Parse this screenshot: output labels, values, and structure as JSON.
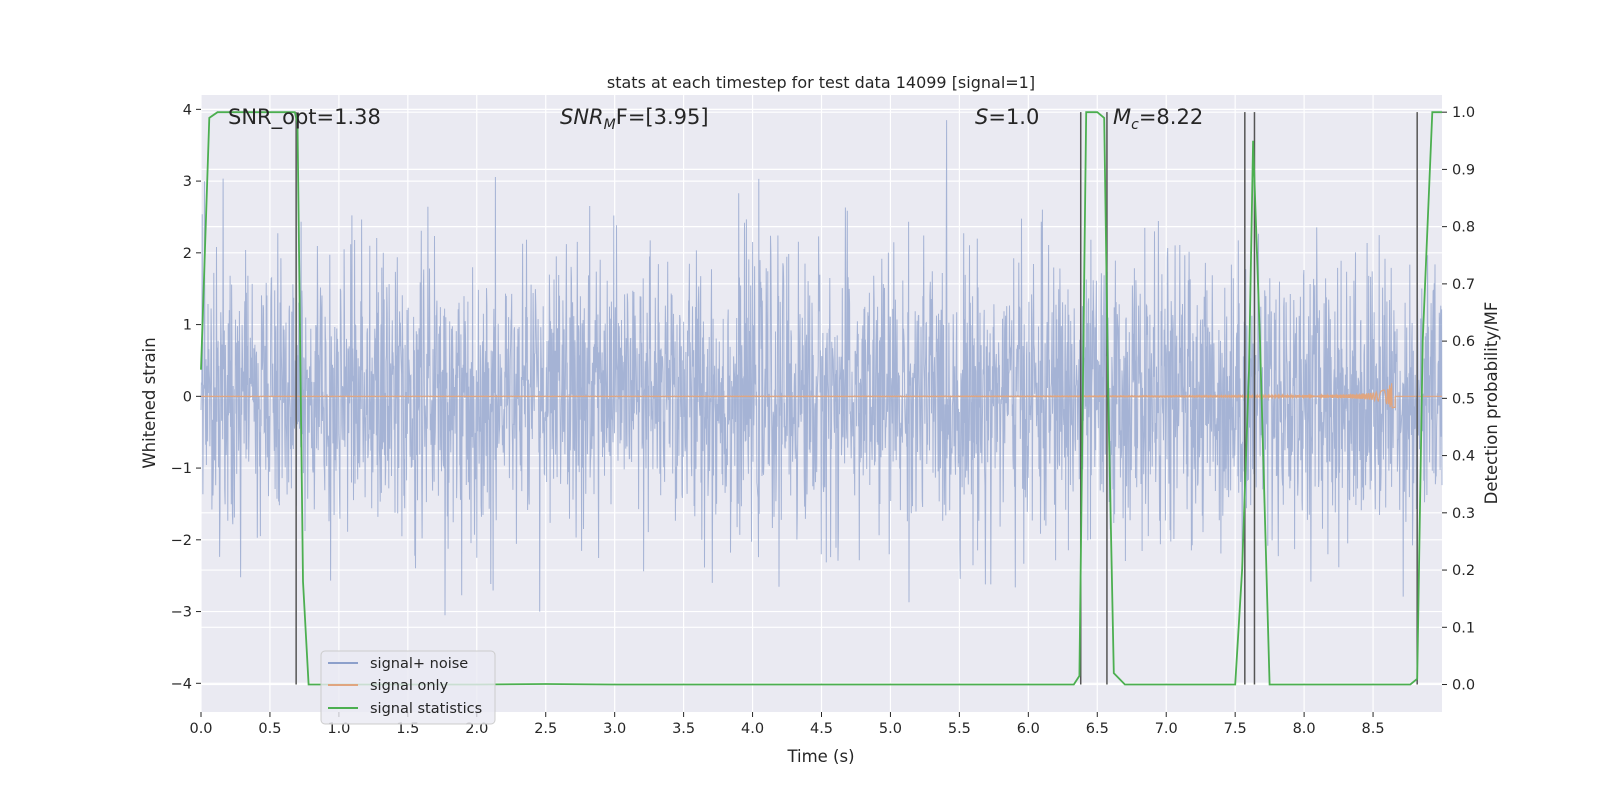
{
  "chart_data": {
    "type": "line",
    "title": "stats at each timestep for test data 14099 [signal=1]",
    "xlabel": "Time (s)",
    "ylabel": "Whitened strain",
    "y2label": "Detection probability/MF",
    "xlim": [
      0.0,
      9.0
    ],
    "ylim": [
      -4.4,
      4.2
    ],
    "y2lim": [
      -0.048,
      1.03
    ],
    "x_ticks": [
      0.0,
      0.5,
      1.0,
      1.5,
      2.0,
      2.5,
      3.0,
      3.5,
      4.0,
      4.5,
      5.0,
      5.5,
      6.0,
      6.5,
      7.0,
      7.5,
      8.0,
      8.5
    ],
    "x_tick_labels": [
      "0.0",
      "0.5",
      "1.0",
      "1.5",
      "2.0",
      "2.5",
      "3.0",
      "3.5",
      "4.0",
      "4.5",
      "5.0",
      "5.5",
      "6.0",
      "6.5",
      "7.0",
      "7.5",
      "8.0",
      "8.5"
    ],
    "y_ticks": [
      4,
      3,
      2,
      1,
      0,
      -1,
      -2,
      -3,
      -4
    ],
    "y_tick_labels": [
      "4",
      "3",
      "2",
      "1",
      "0",
      "−1",
      "−2",
      "−3",
      "−4"
    ],
    "y2_ticks": [
      1.0,
      0.9,
      0.8,
      0.7,
      0.6,
      0.5,
      0.4,
      0.3,
      0.2,
      0.1,
      0.0
    ],
    "y2_tick_labels": [
      "1.0",
      "0.9",
      "0.8",
      "0.7",
      "0.6",
      "0.5",
      "0.4",
      "0.3",
      "0.2",
      "0.1",
      "0.0"
    ],
    "grid": true,
    "legend_placement": "lower-left",
    "annotations": [
      {
        "text": "SNR_opt=1.38",
        "x": 0.2
      },
      {
        "text": "SNR_MF=[3.95]",
        "x": 2.6
      },
      {
        "text": "S=1.0",
        "x": 5.6
      },
      {
        "text": "M_c=8.22",
        "x": 6.6
      }
    ],
    "annotation_parts": {
      "snr_opt": "SNR_opt=1.38",
      "snr_mf_main": "SNR",
      "snr_mf_sub": "M",
      "snr_mf_rest": "F=[3.95]",
      "s_main": "S",
      "s_rest": "=1.0",
      "mc_main": "M",
      "mc_sub": "c",
      "mc_rest": "=8.22"
    },
    "series": [
      {
        "name": "signal+ noise",
        "color": "#8da0cb",
        "kind": "noise",
        "sample_rate_hz": 2048,
        "approx_std": 0.95,
        "approx_range": [
          -4.0,
          3.85
        ]
      },
      {
        "name": "signal only",
        "color": "#e0a57f",
        "kind": "chirp",
        "end_time": 8.66,
        "peak_amplitude": 0.2
      },
      {
        "name": "signal statistics",
        "color": "#4caf50",
        "axis": "right",
        "x": [
          0.0,
          0.06,
          0.12,
          0.2,
          0.3,
          0.4,
          0.5,
          0.6,
          0.68,
          0.7,
          0.74,
          0.78,
          0.82,
          1.0,
          2.0,
          2.5,
          3.0,
          4.0,
          5.0,
          6.0,
          6.33,
          6.37,
          6.42,
          6.5,
          6.55,
          6.58,
          6.62,
          6.7,
          7.0,
          7.5,
          7.55,
          7.6,
          7.63,
          7.68,
          7.75,
          7.8,
          8.0,
          8.5,
          8.77,
          8.82,
          8.86,
          8.93,
          9.0
        ],
        "values": [
          0.55,
          0.99,
          1.0,
          1.0,
          1.0,
          1.0,
          1.0,
          1.0,
          1.0,
          0.98,
          0.18,
          0.0,
          0.0,
          0.0,
          0.0,
          0.001,
          0.0,
          0.0,
          0.0,
          0.0,
          0.0,
          0.015,
          1.0,
          1.0,
          0.99,
          0.5,
          0.02,
          0.0,
          0.0,
          0.0,
          0.2,
          0.55,
          0.95,
          0.6,
          0.0,
          0.0,
          0.0,
          0.0,
          0.0,
          0.01,
          0.6,
          1.0,
          1.0
        ]
      }
    ],
    "vlines": {
      "color": "#555555",
      "x": [
        0.69,
        6.38,
        6.57,
        7.57,
        7.64,
        8.82
      ],
      "from": 0.0,
      "to": 1.0
    }
  },
  "legend": {
    "items": [
      {
        "label": "signal+ noise",
        "color": "#8da0cb"
      },
      {
        "label": "signal only",
        "color": "#e0a57f"
      },
      {
        "label": "signal statistics",
        "color": "#4caf50"
      }
    ]
  },
  "colors": {
    "axes_background": "#eaeaf2",
    "grid": "#ffffff"
  }
}
